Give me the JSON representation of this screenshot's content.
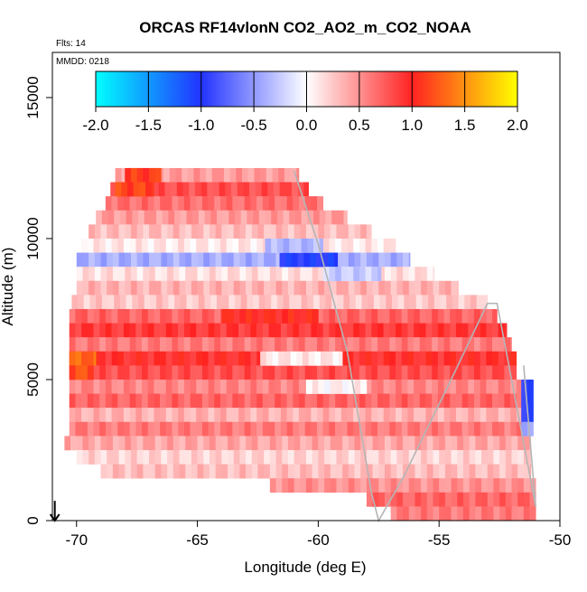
{
  "chart_data": {
    "type": "heatmap",
    "title": "ORCAS RF14vlonN CO2_AO2_m_CO2_NOAA",
    "annotations": [
      "Flts: 14",
      "MMDD: 0218"
    ],
    "xlabel": "Longitude (deg E)",
    "ylabel": "Altitude (m)",
    "xlim": [
      -71.0,
      -50.0
    ],
    "ylim": [
      0,
      16600
    ],
    "x_ticks": [
      -70,
      -65,
      -60,
      -55,
      -50
    ],
    "x_tick_labels": [
      "-70",
      "-65",
      "-60",
      "-55",
      "-50"
    ],
    "y_ticks": [
      0,
      5000,
      10000,
      15000
    ],
    "y_tick_labels": [
      "0",
      "5000",
      "10000",
      "15000"
    ],
    "colorbar": {
      "range": [
        -2.0,
        2.0
      ],
      "ticks": [
        -2.0,
        -1.5,
        -1.0,
        -0.5,
        0.0,
        0.5,
        1.0,
        1.5,
        2.0
      ],
      "tick_labels": [
        "-2.0",
        "-1.5",
        "-1.0",
        "-0.5",
        "0.0",
        "0.5",
        "1.0",
        "1.5",
        "2.0"
      ],
      "color_stops": [
        {
          "v": -2.0,
          "c": "#00ffff"
        },
        {
          "v": -1.0,
          "c": "#2233ff"
        },
        {
          "v": 0.0,
          "c": "#ffffff"
        },
        {
          "v": 1.0,
          "c": "#ff2222"
        },
        {
          "v": 2.0,
          "c": "#ffff00"
        }
      ]
    },
    "bands": [
      {
        "alt_min": 12000,
        "alt_max": 12500,
        "lon_min": -68.4,
        "lon_max": -60.8,
        "value": 0.45
      },
      {
        "alt_min": 11500,
        "alt_max": 12000,
        "lon_min": -68.6,
        "lon_max": -60.4,
        "value": 0.8
      },
      {
        "alt_min": 11000,
        "alt_max": 11500,
        "lon_min": -68.8,
        "lon_max": -59.8,
        "value": 0.65
      },
      {
        "alt_min": 10500,
        "alt_max": 11000,
        "lon_min": -69.2,
        "lon_max": -58.8,
        "value": 0.45
      },
      {
        "alt_min": 10000,
        "alt_max": 10500,
        "lon_min": -69.5,
        "lon_max": -57.8,
        "value": 0.3
      },
      {
        "alt_min": 9500,
        "alt_max": 10000,
        "lon_min": -69.8,
        "lon_max": -56.8,
        "value": 0.1
      },
      {
        "alt_min": 9000,
        "alt_max": 9500,
        "lon_min": -70.0,
        "lon_max": -56.2,
        "value": -0.4
      },
      {
        "alt_min": 8500,
        "alt_max": 9000,
        "lon_min": -70.0,
        "lon_max": -55.2,
        "value": 0.15
      },
      {
        "alt_min": 8000,
        "alt_max": 8500,
        "lon_min": -70.0,
        "lon_max": -54.2,
        "value": 0.35
      },
      {
        "alt_min": 7500,
        "alt_max": 8000,
        "lon_min": -70.2,
        "lon_max": -53.0,
        "value": 0.25
      },
      {
        "alt_min": 7000,
        "alt_max": 7500,
        "lon_min": -70.3,
        "lon_max": -52.6,
        "value": 0.7
      },
      {
        "alt_min": 6500,
        "alt_max": 7000,
        "lon_min": -70.3,
        "lon_max": -52.2,
        "value": 0.9
      },
      {
        "alt_min": 6000,
        "alt_max": 6500,
        "lon_min": -70.3,
        "lon_max": -52.0,
        "value": 0.6
      },
      {
        "alt_min": 5500,
        "alt_max": 6000,
        "lon_min": -70.3,
        "lon_max": -51.8,
        "value": 0.95
      },
      {
        "alt_min": 5000,
        "alt_max": 5500,
        "lon_min": -70.3,
        "lon_max": -51.8,
        "value": 0.8
      },
      {
        "alt_min": 4500,
        "alt_max": 5000,
        "lon_min": -70.3,
        "lon_max": -51.6,
        "value": 0.55
      },
      {
        "alt_min": 4000,
        "alt_max": 4500,
        "lon_min": -70.3,
        "lon_max": -51.6,
        "value": 0.7
      },
      {
        "alt_min": 3500,
        "alt_max": 4000,
        "lon_min": -70.3,
        "lon_max": -51.2,
        "value": 0.35
      },
      {
        "alt_min": 3000,
        "alt_max": 3500,
        "lon_min": -70.3,
        "lon_max": -51.2,
        "value": 0.6
      },
      {
        "alt_min": 2500,
        "alt_max": 3000,
        "lon_min": -70.5,
        "lon_max": -51.2,
        "value": 0.4
      },
      {
        "alt_min": 2000,
        "alt_max": 2500,
        "lon_min": -70.0,
        "lon_max": -51.2,
        "value": 0.2
      },
      {
        "alt_min": 1500,
        "alt_max": 2000,
        "lon_min": -69.0,
        "lon_max": -51.2,
        "value": 0.3
      },
      {
        "alt_min": 1000,
        "alt_max": 1500,
        "lon_min": -62.0,
        "lon_max": -51.0,
        "value": 0.5
      },
      {
        "alt_min": 500,
        "alt_max": 1000,
        "lon_min": -58.0,
        "lon_max": -51.0,
        "value": 0.7
      },
      {
        "alt_min": 0,
        "alt_max": 500,
        "lon_min": -57.0,
        "lon_max": -51.0,
        "value": 0.6
      }
    ],
    "features": [
      {
        "alt_min": 9000,
        "alt_max": 9500,
        "lon_min": -61.6,
        "lon_max": -59.2,
        "value": -1.0
      },
      {
        "alt_min": 9500,
        "alt_max": 10000,
        "lon_min": -62.2,
        "lon_max": -59.8,
        "value": -0.35
      },
      {
        "alt_min": 8500,
        "alt_max": 9000,
        "lon_min": -59.8,
        "lon_max": -57.4,
        "value": -0.25
      },
      {
        "alt_min": 7000,
        "alt_max": 7500,
        "lon_min": -64.0,
        "lon_max": -60.0,
        "value": 1.0
      },
      {
        "alt_min": 5500,
        "alt_max": 6000,
        "lon_min": -70.3,
        "lon_max": -69.2,
        "value": 1.3
      },
      {
        "alt_min": 5000,
        "alt_max": 5500,
        "lon_min": -70.3,
        "lon_max": -69.3,
        "value": 1.2
      },
      {
        "alt_min": 5500,
        "alt_max": 6000,
        "lon_min": -62.4,
        "lon_max": -59.0,
        "value": 0.1
      },
      {
        "alt_min": 4500,
        "alt_max": 5000,
        "lon_min": -60.5,
        "lon_max": -58.0,
        "value": 0.05
      },
      {
        "alt_min": 12000,
        "alt_max": 12500,
        "lon_min": -68.0,
        "lon_max": -66.5,
        "value": 1.1
      },
      {
        "alt_min": 11500,
        "alt_max": 12000,
        "lon_min": -68.4,
        "lon_max": -66.8,
        "value": 1.15
      },
      {
        "alt_min": 3500,
        "alt_max": 5000,
        "lon_min": -51.6,
        "lon_max": -51.1,
        "value": -1.0
      },
      {
        "alt_min": 3000,
        "alt_max": 3500,
        "lon_min": -51.6,
        "lon_max": -51.1,
        "value": -0.5
      }
    ],
    "flight_track": [
      {
        "lon": -61.0,
        "alt": 12400
      },
      {
        "lon": -60.0,
        "alt": 9800
      },
      {
        "lon": -58.8,
        "alt": 6000
      },
      {
        "lon": -57.8,
        "alt": 1000
      },
      {
        "lon": -57.5,
        "alt": 0
      },
      {
        "lon": -56.5,
        "alt": 1500
      },
      {
        "lon": -54.5,
        "alt": 5000
      },
      {
        "lon": -53.0,
        "alt": 7700
      },
      {
        "lon": -52.6,
        "alt": 7700
      },
      {
        "lon": -51.0,
        "alt": 500
      },
      {
        "lon": -51.5,
        "alt": 5500
      }
    ],
    "start_marker": {
      "lon": -70.9,
      "alt": 700
    }
  }
}
